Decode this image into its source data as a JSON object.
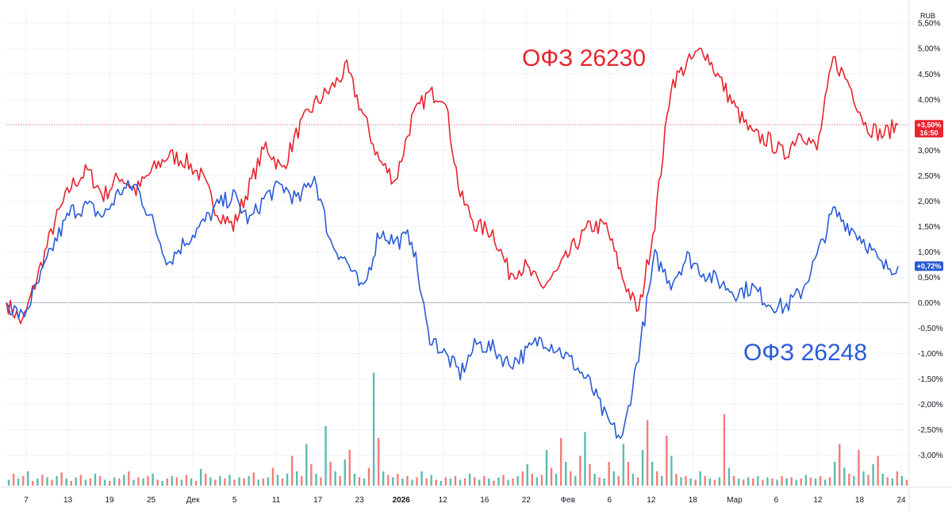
{
  "chart_data": {
    "type": "line",
    "title": "",
    "currency": "RUB",
    "y_unit": "percent_change",
    "ylim": [
      -3.6,
      5.8
    ],
    "y_ticks": [
      {
        "value": 5.5,
        "label": "5,50%"
      },
      {
        "value": 5.0,
        "label": "5,00%"
      },
      {
        "value": 4.5,
        "label": "4,50%"
      },
      {
        "value": 4.0,
        "label": "4,00%"
      },
      {
        "value": 3.5,
        "label": "3,50%"
      },
      {
        "value": 3.0,
        "label": "3,00%"
      },
      {
        "value": 2.5,
        "label": "2,50%"
      },
      {
        "value": 2.0,
        "label": "2,00%"
      },
      {
        "value": 1.5,
        "label": "1,50%"
      },
      {
        "value": 1.0,
        "label": "1,00%"
      },
      {
        "value": 0.5,
        "label": "0,50%"
      },
      {
        "value": 0.0,
        "label": "0,00%"
      },
      {
        "value": -0.5,
        "label": "-0,50%"
      },
      {
        "value": -1.0,
        "label": "-1,00%"
      },
      {
        "value": -1.5,
        "label": "-1,50%"
      },
      {
        "value": -2.0,
        "label": "-2,00%"
      },
      {
        "value": -2.5,
        "label": "-2,50%"
      },
      {
        "value": -3.0,
        "label": "-3,00%"
      }
    ],
    "x_tick_labels": [
      {
        "label": "7",
        "bold": false
      },
      {
        "label": "13",
        "bold": false
      },
      {
        "label": "19",
        "bold": false
      },
      {
        "label": "25",
        "bold": false
      },
      {
        "label": "Дек",
        "bold": false
      },
      {
        "label": "5",
        "bold": false
      },
      {
        "label": "11",
        "bold": false
      },
      {
        "label": "17",
        "bold": false
      },
      {
        "label": "23",
        "bold": false
      },
      {
        "label": "2026",
        "bold": true
      },
      {
        "label": "12",
        "bold": false
      },
      {
        "label": "16",
        "bold": false
      },
      {
        "label": "22",
        "bold": false
      },
      {
        "label": "Фев",
        "bold": false
      },
      {
        "label": "6",
        "bold": false
      },
      {
        "label": "12",
        "bold": false
      },
      {
        "label": "18",
        "bold": false
      },
      {
        "label": "Мар",
        "bold": false
      },
      {
        "label": "6",
        "bold": false
      },
      {
        "label": "12",
        "bold": false
      },
      {
        "label": "18",
        "bold": false
      },
      {
        "label": "24",
        "bold": false
      }
    ],
    "grid": true,
    "series": [
      {
        "name": "ОФЗ 26230",
        "color": "#e8242e",
        "last_value_label": "+3,50%",
        "last_time_label": "16:50",
        "values": [
          0,
          -0.4,
          0.6,
          1.6,
          2.3,
          2.6,
          2.1,
          2.5,
          2.2,
          2.6,
          2.9,
          2.8,
          2.5,
          1.8,
          1.5,
          2.3,
          3.1,
          2.6,
          3.4,
          3.9,
          4.2,
          4.6,
          3.7,
          2.8,
          2.4,
          3.6,
          4.1,
          4.1,
          2.1,
          1.5,
          1.4,
          0.6,
          0.7,
          0.3,
          0.6,
          1.1,
          1.5,
          1.5,
          0.5,
          -0.2,
          1.6,
          4.3,
          4.7,
          5.0,
          4.4,
          3.8,
          3.3,
          3.2,
          2.9,
          3.4,
          3.0,
          4.8,
          4.3,
          3.5,
          3.3,
          3.5
        ]
      },
      {
        "name": "ОФЗ 26248",
        "color": "#2a5bd7",
        "last_value_label": "+0,72%",
        "values": [
          0,
          -0.3,
          0.4,
          1.2,
          1.8,
          1.9,
          1.7,
          2.2,
          2.3,
          1.6,
          0.8,
          1.2,
          1.5,
          1.9,
          2.1,
          1.6,
          2.1,
          2.3,
          2.0,
          2.5,
          1.2,
          0.8,
          0.2,
          1.4,
          1.2,
          1.3,
          -0.6,
          -1.0,
          -1.4,
          -0.8,
          -0.9,
          -1.2,
          -1.0,
          -0.7,
          -0.9,
          -1.2,
          -1.6,
          -2.3,
          -2.7,
          -1.0,
          0.9,
          0.4,
          0.9,
          0.6,
          0.4,
          0.2,
          0.3,
          0.0,
          -0.1,
          0.2,
          0.9,
          1.8,
          1.5,
          1.2,
          0.7,
          0.72
        ]
      }
    ],
    "volume": {
      "colors": [
        "#26a69a",
        "#ef5350"
      ],
      "values": [
        0.05,
        0.1,
        0.06,
        0.08,
        0.12,
        0.04,
        0.06,
        0.09,
        0.07,
        0.05,
        0.08,
        0.11,
        0.06,
        0.04,
        0.07,
        0.09,
        0.05,
        0.06,
        0.1,
        0.08,
        0.05,
        0.04,
        0.07,
        0.06,
        0.09,
        0.12,
        0.05,
        0.07,
        0.06,
        0.08,
        0.1,
        0.05,
        0.04,
        0.06,
        0.08,
        0.07,
        0.05,
        0.09,
        0.06,
        0.04,
        0.14,
        0.1,
        0.07,
        0.05,
        0.08,
        0.06,
        0.09,
        0.05,
        0.07,
        0.06,
        0.08,
        0.11,
        0.05,
        0.06,
        0.07,
        0.15,
        0.09,
        0.06,
        0.1,
        0.25,
        0.12,
        0.08,
        0.35,
        0.18,
        0.1,
        0.07,
        0.5,
        0.2,
        0.12,
        0.08,
        0.22,
        0.3,
        0.1,
        0.07,
        0.06,
        0.15,
        0.95,
        0.4,
        0.12,
        0.09,
        0.07,
        0.1,
        0.06,
        0.08,
        0.05,
        0.07,
        0.12,
        0.06,
        0.09,
        0.05,
        0.04,
        0.07,
        0.06,
        0.08,
        0.05,
        0.06,
        0.1,
        0.07,
        0.05,
        0.08,
        0.06,
        0.04,
        0.07,
        0.09,
        0.05,
        0.06,
        0.08,
        0.12,
        0.18,
        0.1,
        0.07,
        0.09,
        0.3,
        0.15,
        0.1,
        0.4,
        0.2,
        0.12,
        0.08,
        0.25,
        0.45,
        0.18,
        0.1,
        0.07,
        0.06,
        0.2,
        0.12,
        0.08,
        0.35,
        0.2,
        0.1,
        0.07,
        0.3,
        0.55,
        0.2,
        0.12,
        0.08,
        0.42,
        0.25,
        0.1,
        0.07,
        0.08,
        0.06,
        0.05,
        0.12,
        0.08,
        0.06,
        0.05,
        0.07,
        0.6,
        0.15,
        0.08,
        0.06,
        0.05,
        0.07,
        0.06,
        0.08,
        0.05,
        0.07,
        0.06,
        0.05,
        0.08,
        0.06,
        0.07,
        0.05,
        0.06,
        0.09,
        0.07,
        0.06,
        0.08,
        0.05,
        0.07,
        0.2,
        0.35,
        0.15,
        0.1,
        0.08,
        0.3,
        0.12,
        0.09,
        0.18,
        0.25,
        0.1,
        0.07,
        0.06,
        0.12,
        0.08,
        0.05
      ]
    }
  }
}
